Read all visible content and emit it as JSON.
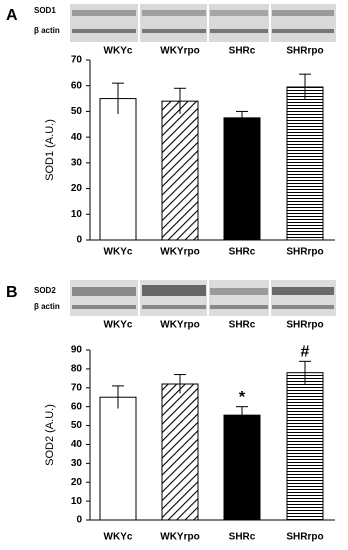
{
  "chart_data": [
    {
      "type": "bar",
      "panel_label": "A",
      "blot_labels": [
        "SOD1",
        "β actin"
      ],
      "ylabel": "SOD1 (A.U.)",
      "categories": [
        "WKYc",
        "WKYrpo",
        "SHRc",
        "SHRrpo"
      ],
      "values": [
        55,
        54,
        47.5,
        59.5
      ],
      "errors": [
        6,
        5,
        2.5,
        5
      ],
      "fills": [
        "white",
        "diagonal",
        "black",
        "horizontal"
      ],
      "ylim": [
        0,
        70
      ],
      "yticks": [
        0,
        10,
        20,
        30,
        40,
        50,
        60,
        70
      ]
    },
    {
      "type": "bar",
      "panel_label": "B",
      "blot_labels": [
        "SOD2",
        "β actin"
      ],
      "ylabel": "SOD2 (A.U.)",
      "categories": [
        "WKYc",
        "WKYrpo",
        "SHRc",
        "SHRrpo"
      ],
      "values": [
        65,
        72,
        55.5,
        78
      ],
      "errors": [
        6,
        5,
        4.5,
        6
      ],
      "annotations": [
        null,
        null,
        "*",
        "#"
      ],
      "fills": [
        "white",
        "diagonal",
        "black",
        "horizontal"
      ],
      "ylim": [
        0,
        90
      ],
      "yticks": [
        0,
        10,
        20,
        30,
        40,
        50,
        60,
        70,
        80,
        90
      ]
    }
  ]
}
